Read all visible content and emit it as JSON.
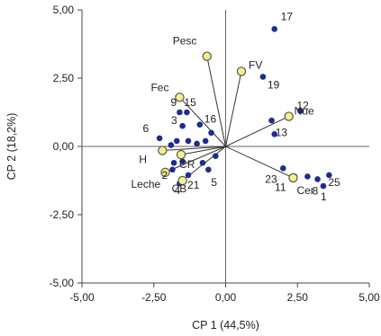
{
  "chart_data": {
    "type": "scatter",
    "xlabel": "CP 1 (44,5%)",
    "ylabel": "CP 2 (18,2%)",
    "xlim": [
      -5,
      5
    ],
    "ylim": [
      -5,
      5
    ],
    "xticks": [
      -5,
      -2.5,
      0,
      2.5,
      5
    ],
    "xtick_labels": [
      "-5,00",
      "-2,50",
      "0,00",
      "2,50",
      "5,00"
    ],
    "yticks": [
      -5,
      -2.5,
      0,
      2.5,
      5
    ],
    "ytick_labels": [
      "-5,00",
      "-2,50",
      "0,00",
      "2,50",
      "5,00"
    ],
    "grid": false,
    "colors": {
      "observation": "#1f2c8f",
      "variable_fill": "#f5f08a",
      "variable_stroke": "#555555",
      "axis": "#444444",
      "loading_line": "#333333"
    },
    "variables": [
      {
        "name": "Pesc",
        "x": -0.65,
        "y": 3.3
      },
      {
        "name": "FV",
        "x": 0.55,
        "y": 2.75
      },
      {
        "name": "Fec",
        "x": -1.6,
        "y": 1.8
      },
      {
        "name": "Nue",
        "x": 2.2,
        "y": 1.1
      },
      {
        "name": "CR",
        "x": -1.55,
        "y": -0.3
      },
      {
        "name": "H",
        "x": -2.2,
        "y": -0.15
      },
      {
        "name": "Cer",
        "x": 2.35,
        "y": -1.15
      },
      {
        "name": "Leche",
        "x": -2.1,
        "y": -0.95
      },
      {
        "name": "CB",
        "x": -1.5,
        "y": -1.25
      }
    ],
    "points": [
      {
        "label": "17",
        "x": 1.7,
        "y": 4.3
      },
      {
        "label": "19",
        "x": 1.3,
        "y": 2.55
      },
      {
        "label": "9",
        "x": -1.6,
        "y": 1.25
      },
      {
        "label": "15",
        "x": -1.35,
        "y": 1.25
      },
      {
        "label": "16",
        "x": -0.9,
        "y": 0.8
      },
      {
        "label": "3",
        "x": -1.5,
        "y": 0.75
      },
      {
        "label": "6",
        "x": -2.3,
        "y": 0.3
      },
      {
        "label": "13",
        "x": 1.7,
        "y": 0.45
      },
      {
        "label": "12",
        "x": 2.6,
        "y": 1.3
      },
      {
        "label": "23",
        "x": 2.0,
        "y": -0.8
      },
      {
        "label": "11",
        "x": 2.4,
        "y": -1.1
      },
      {
        "label": "8",
        "x": 3.2,
        "y": -1.2
      },
      {
        "label": "25",
        "x": 3.6,
        "y": -1.05
      },
      {
        "label": "1",
        "x": 3.4,
        "y": -1.45
      },
      {
        "label": "5",
        "x": -0.6,
        "y": -0.85
      },
      {
        "label": "21",
        "x": -1.3,
        "y": -1.05
      },
      {
        "label": "4",
        "x": -1.6,
        "y": -1.35
      },
      {
        "label": "2",
        "x": -1.85,
        "y": -0.85
      },
      {
        "label": "",
        "x": -1.0,
        "y": 0.1
      },
      {
        "label": "",
        "x": -1.3,
        "y": 0.2
      },
      {
        "label": "",
        "x": -1.7,
        "y": 0.2
      },
      {
        "label": "",
        "x": -1.9,
        "y": 0.05
      },
      {
        "label": "",
        "x": -1.5,
        "y": -0.55
      },
      {
        "label": "",
        "x": -1.8,
        "y": -0.6
      },
      {
        "label": "",
        "x": -0.35,
        "y": -0.35
      },
      {
        "label": "",
        "x": -0.8,
        "y": -0.6
      },
      {
        "label": "",
        "x": -0.7,
        "y": 0.2
      },
      {
        "label": "",
        "x": -0.5,
        "y": 0.5
      },
      {
        "label": "",
        "x": 2.85,
        "y": -1.1
      },
      {
        "label": "",
        "x": 1.6,
        "y": 0.95
      }
    ]
  }
}
